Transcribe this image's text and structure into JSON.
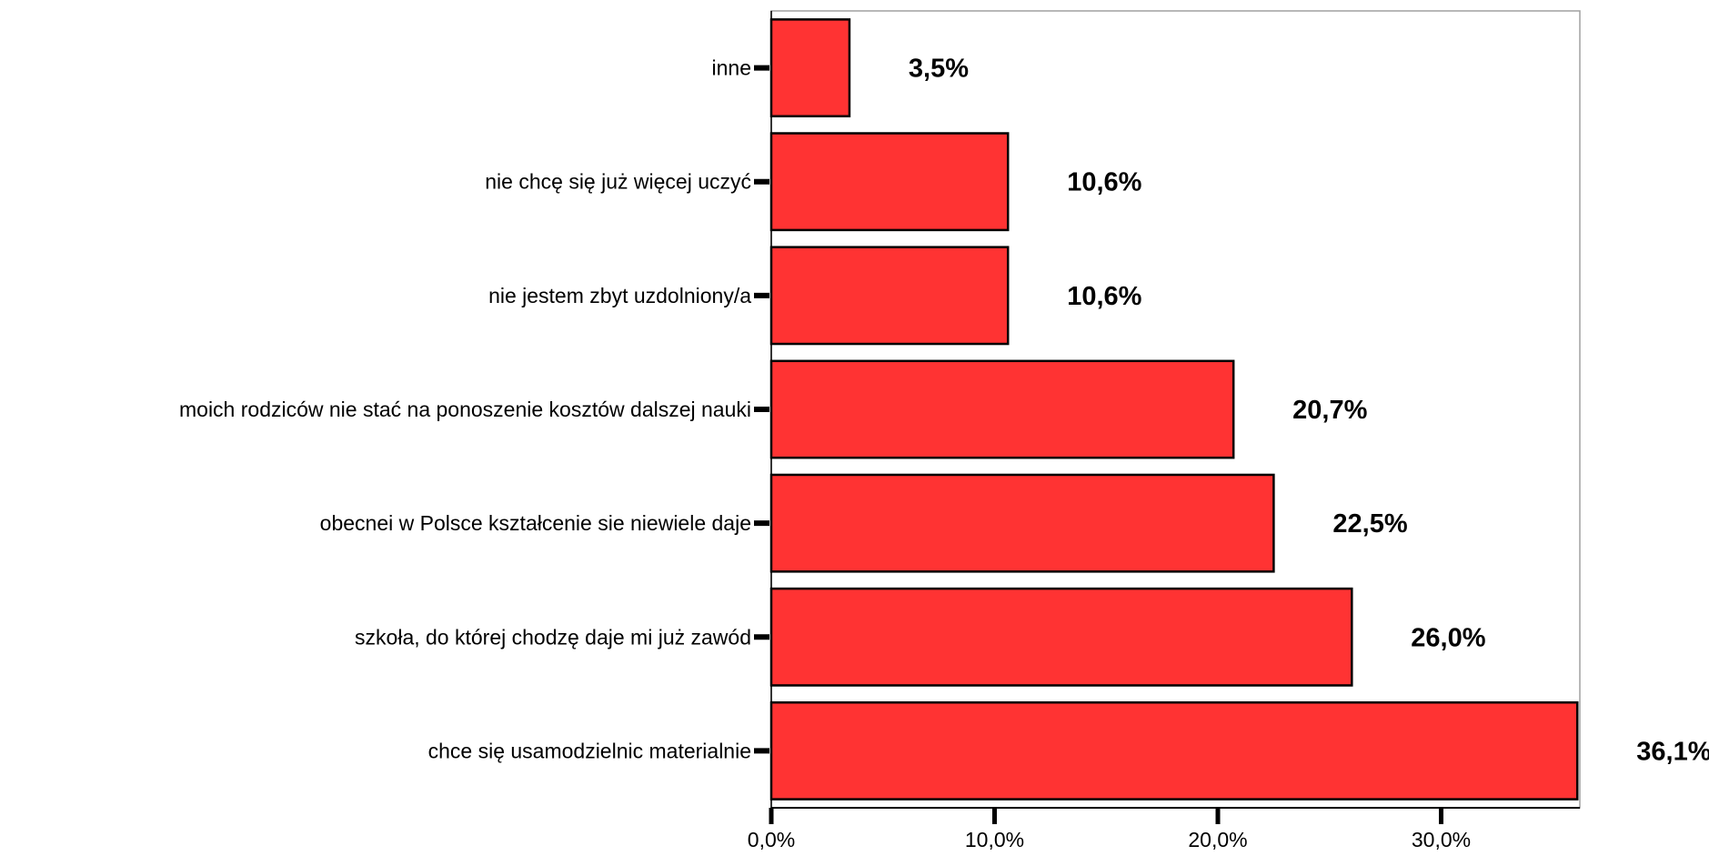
{
  "chart_data": {
    "type": "bar",
    "orientation": "horizontal",
    "title": "",
    "xlabel": "",
    "ylabel": "",
    "categories": [
      "inne",
      "nie chcę się już więcej uczyć",
      "nie jestem zbyt uzdolniony/a",
      "moich rodziców nie stać na ponoszenie kosztów dalszej nauki",
      "obecnei w Polsce kształcenie sie niewiele daje",
      "szkoła, do której chodzę daje mi już zawód",
      "chce się usamodzielnic materialnie"
    ],
    "values": [
      3.5,
      10.6,
      10.6,
      20.7,
      22.5,
      26.0,
      36.1
    ],
    "value_labels": [
      "3,5%",
      "10,6%",
      "10,6%",
      "20,7%",
      "22,5%",
      "26,0%",
      "36,1%"
    ],
    "xlim": [
      0,
      36.2
    ],
    "x_ticks": [
      0,
      10,
      20,
      30
    ],
    "x_tick_labels": [
      "0,0%",
      "10,0%",
      "20,0%",
      "30,0%"
    ],
    "grid": false,
    "bar_color": "#ff3333",
    "bar_edge_color": "#000000"
  }
}
